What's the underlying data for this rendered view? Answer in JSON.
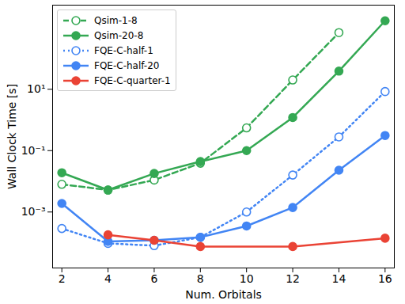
{
  "chart_data": {
    "type": "line",
    "x_label": "Num. Orbitals",
    "y_label": "Wall Clock Time [s]",
    "log": "y",
    "grid": false,
    "legend": "upper left",
    "xlim": [
      1.6,
      16.4
    ],
    "xticks": [
      2,
      4,
      6,
      8,
      10,
      12,
      14,
      16
    ],
    "ylim": [
      1.5e-05,
      5500
    ],
    "yticks": [
      {
        "value": 0.001,
        "label": "10⁻³"
      },
      {
        "value": 0.1,
        "label": "10⁻¹"
      },
      {
        "value": 10,
        "label": "10¹"
      }
    ],
    "series": [
      {
        "name": "Qsim-1-8",
        "color": "#34a853",
        "marker": "open_circle",
        "line_style": "dashed",
        "x": [
          2,
          4,
          6,
          8,
          10,
          12,
          14
        ],
        "values": [
          0.008,
          0.0052,
          0.011,
          0.039,
          0.55,
          20,
          700
        ]
      },
      {
        "name": "Qsim-20-8",
        "color": "#34a853",
        "marker": "circle",
        "line_style": "solid",
        "x": [
          2,
          4,
          6,
          8,
          10,
          12,
          14,
          16
        ],
        "values": [
          0.019,
          0.0052,
          0.018,
          0.044,
          0.1,
          1.2,
          39,
          1700
        ]
      },
      {
        "name": "FQE-C-half-1",
        "color": "#4285f4",
        "marker": "open_circle",
        "line_style": "dotted",
        "x": [
          2,
          4,
          6,
          8,
          10,
          12,
          14,
          16
        ],
        "values": [
          0.00029,
          9.5e-05,
          8e-05,
          0.00015,
          0.001,
          0.016,
          0.28,
          8.4
        ]
      },
      {
        "name": "FQE-C-half-20",
        "color": "#4285f4",
        "marker": "circle",
        "line_style": "solid",
        "x": [
          2,
          4,
          6,
          8,
          10,
          12,
          14,
          16
        ],
        "values": [
          0.0019,
          0.00011,
          0.00012,
          0.00015,
          0.00035,
          0.0014,
          0.023,
          0.31
        ]
      },
      {
        "name": "FQE-C-quarter-1",
        "color": "#ea4335",
        "marker": "circle",
        "line_style": "solid",
        "x": [
          4,
          6,
          8,
          12,
          16
        ],
        "values": [
          0.00018,
          0.00012,
          7.5e-05,
          7.5e-05,
          0.00014
        ]
      }
    ]
  }
}
